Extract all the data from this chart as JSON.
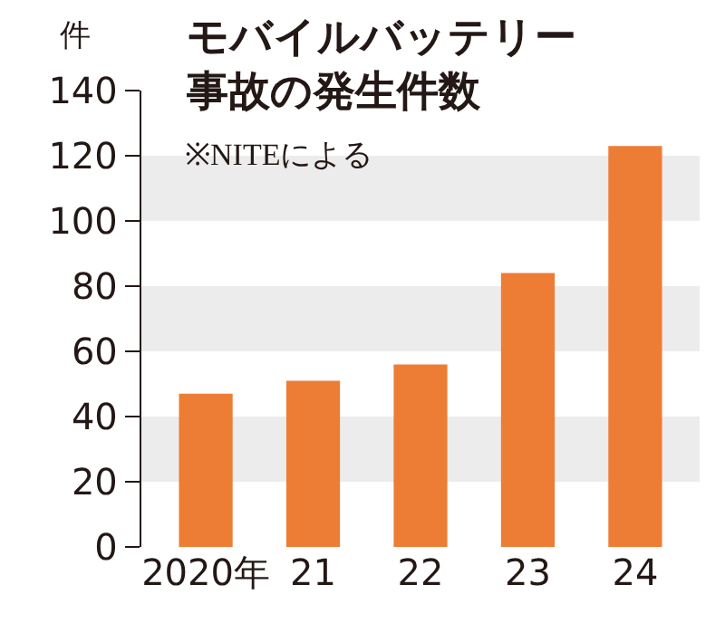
{
  "chart_data": {
    "type": "bar",
    "title": "モバイルバッテリー事故の発生件数",
    "ylabel": "件",
    "annotations": [
      "※NITEによる"
    ],
    "categories": [
      "2020年",
      "21",
      "22",
      "23",
      "24"
    ],
    "values": [
      47,
      51,
      56,
      84,
      123
    ],
    "color": "#ed7d35",
    "ylim": [
      0,
      140
    ],
    "yticks": [
      0,
      20,
      40,
      60,
      80,
      100,
      120,
      140
    ],
    "grid": false,
    "bands": [
      {
        "axis": "y",
        "from": 20,
        "to": 40,
        "color": "#ececec"
      },
      {
        "axis": "y",
        "from": 60,
        "to": 80,
        "color": "#ececec"
      },
      {
        "axis": "y",
        "from": 100,
        "to": 120,
        "color": "#ececec"
      }
    ]
  }
}
